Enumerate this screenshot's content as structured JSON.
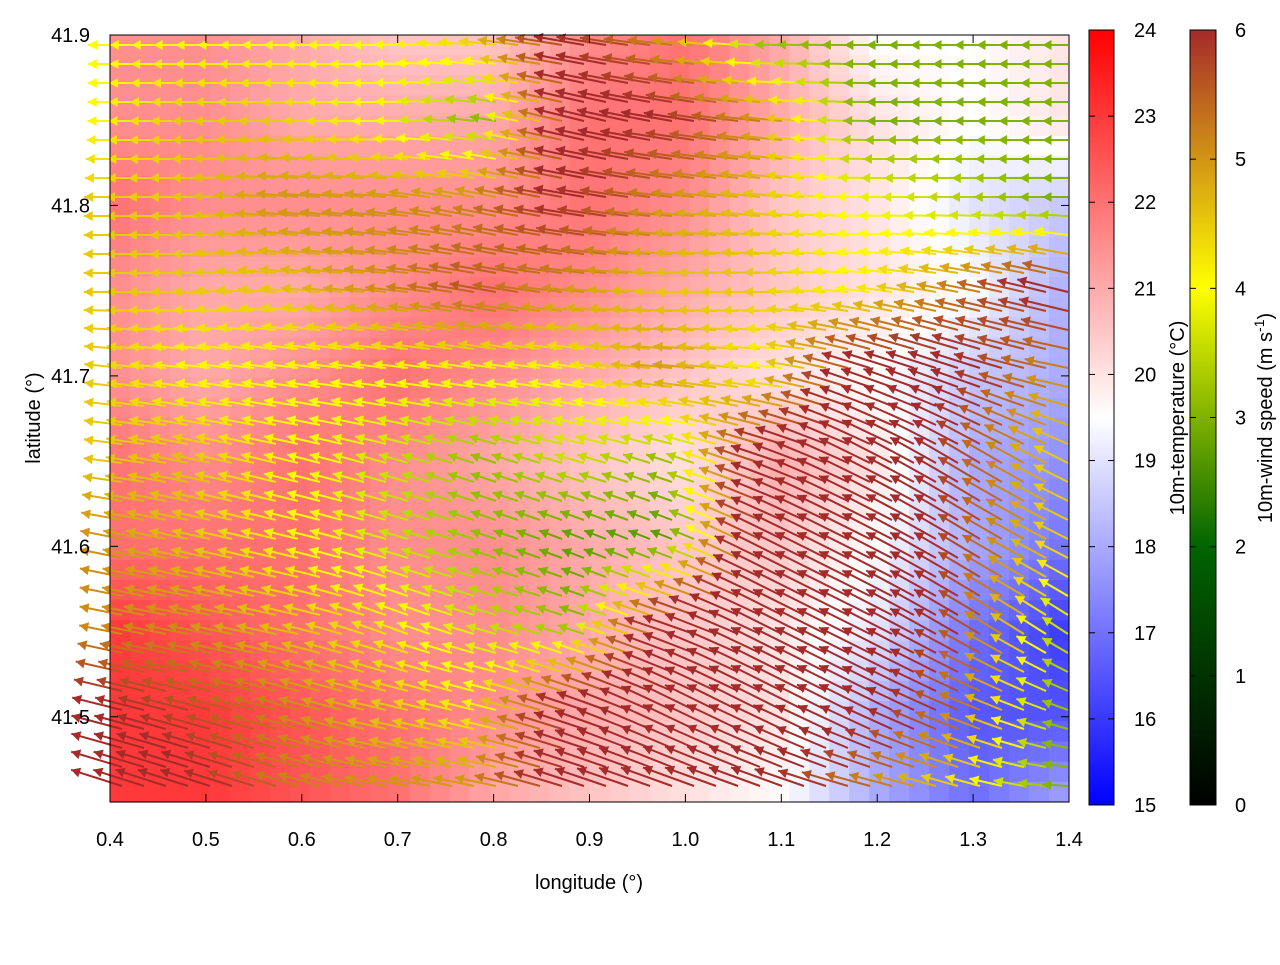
{
  "chart_data": {
    "type": "heatmap",
    "overlay": "vector-field",
    "xlabel": "longitude (°)",
    "ylabel": "latitude (°)",
    "xlim": [
      0.4,
      1.4
    ],
    "ylim": [
      41.45,
      41.9
    ],
    "xticks": [
      "0.4",
      "0.5",
      "0.6",
      "0.7",
      "0.8",
      "0.9",
      "1.0",
      "1.1",
      "1.2",
      "1.3",
      "1.4"
    ],
    "yticks": [
      "41.5",
      "41.6",
      "41.7",
      "41.8",
      "41.9"
    ],
    "grid": false,
    "temperature_colorbar": {
      "label": "10m-temperature (°C)",
      "range": [
        15,
        24
      ],
      "ticks": [
        "15",
        "16",
        "17",
        "18",
        "19",
        "20",
        "21",
        "22",
        "23",
        "24"
      ],
      "colors": [
        "#0000ff",
        "#ffffff",
        "#ff0000"
      ]
    },
    "wind_colorbar": {
      "label": "10m-wind speed (m s",
      "label_sup": "-1",
      "label_end": ")",
      "range": [
        0,
        6
      ],
      "ticks": [
        "0",
        "1",
        "2",
        "3",
        "4",
        "5",
        "6"
      ],
      "colors": [
        "#000000",
        "#006400",
        "#ffff00",
        "#a52a2a"
      ]
    },
    "grid_lon": [
      0.4,
      0.5,
      0.6,
      0.7,
      0.8,
      0.9,
      1.0,
      1.1,
      1.2,
      1.3,
      1.4
    ],
    "grid_lat": [
      41.9,
      41.85,
      41.8,
      41.75,
      41.7,
      41.65,
      41.6,
      41.55,
      41.5,
      41.45
    ],
    "temperature": [
      [
        21.5,
        21.5,
        21,
        20.5,
        20.5,
        21.5,
        22,
        21,
        19.5,
        19.5,
        20
      ],
      [
        21.5,
        21.5,
        21,
        21,
        21,
        22,
        22,
        21,
        20,
        19.5,
        20
      ],
      [
        22,
        21.5,
        21.5,
        21.5,
        21.5,
        22,
        21.5,
        20.5,
        20,
        19,
        18.5
      ],
      [
        21.5,
        21,
        21,
        21.5,
        22,
        21.5,
        21,
        20.5,
        20,
        19.5,
        18
      ],
      [
        21.5,
        21,
        21.5,
        22,
        21.5,
        21,
        20.5,
        20,
        19.5,
        18.5,
        18
      ],
      [
        22,
        21.5,
        22,
        21.5,
        21,
        20.5,
        20,
        21,
        20,
        18,
        17.5
      ],
      [
        22,
        22,
        22,
        21.5,
        21.5,
        21,
        20.5,
        20.5,
        19.5,
        18,
        17
      ],
      [
        23,
        22.5,
        22,
        21.5,
        21.5,
        21,
        20.5,
        20,
        19,
        17,
        16
      ],
      [
        23,
        23,
        22.5,
        22,
        21.5,
        21,
        20.5,
        20,
        18,
        16.5,
        16.5
      ],
      [
        23,
        23,
        22.5,
        22,
        21,
        20.5,
        20,
        19.5,
        18,
        17,
        18
      ]
    ],
    "wind_u": [
      [
        -4,
        -4,
        -4,
        -4,
        -4.5,
        -6,
        -5,
        -3,
        -3,
        -3,
        -3
      ],
      [
        -4,
        -4.5,
        -4.5,
        -4,
        -3,
        -6,
        -6,
        -5,
        -3,
        -3,
        -3
      ],
      [
        -4.5,
        -4.5,
        -5,
        -5,
        -5,
        -6,
        -5,
        -4.5,
        -4,
        -3.5,
        -3
      ],
      [
        -4.5,
        -4.5,
        -4.5,
        -5,
        -5.5,
        -5,
        -4.5,
        -4.5,
        -4,
        -5,
        -6
      ],
      [
        -4.5,
        -4,
        -4,
        -4,
        -4,
        -4,
        -5,
        -4,
        -6,
        -6,
        -5
      ],
      [
        -4.5,
        -4.5,
        -4,
        -3.5,
        -3,
        -3.5,
        -3,
        -6,
        -6,
        -5,
        -4
      ],
      [
        -5,
        -4.5,
        -4,
        -3.5,
        -3,
        -2.5,
        -2.5,
        -6,
        -6,
        -5,
        -4
      ],
      [
        -5,
        -5,
        -4.5,
        -4,
        -3.5,
        -3,
        -6,
        -6,
        -6,
        -5,
        -3
      ],
      [
        -6,
        -5.5,
        -5,
        -4.5,
        -4,
        -6,
        -6,
        -6,
        -6,
        -5,
        -3
      ],
      [
        -6,
        -6,
        -5,
        -5,
        -5,
        -6,
        -6,
        -6,
        -5,
        -4,
        -3
      ]
    ],
    "wind_v": [
      [
        0,
        0,
        0,
        0,
        0.5,
        1,
        0.5,
        0,
        0,
        0,
        0
      ],
      [
        0,
        0,
        0,
        0,
        0.5,
        1.5,
        1,
        0.5,
        0,
        0,
        0
      ],
      [
        0,
        0,
        0.5,
        0.5,
        1,
        1,
        0.5,
        0.5,
        0,
        0,
        0
      ],
      [
        0,
        0,
        0.5,
        0.5,
        1,
        0.5,
        0,
        0,
        0.5,
        1,
        1.5
      ],
      [
        0.5,
        0.5,
        0.5,
        0.5,
        0.5,
        0.5,
        0.5,
        0.5,
        2,
        2,
        1
      ],
      [
        0.5,
        1,
        1,
        1,
        1,
        1,
        1,
        2,
        3,
        3,
        2
      ],
      [
        1,
        1,
        1,
        1,
        1,
        1,
        1,
        3,
        3,
        3,
        2
      ],
      [
        1,
        1,
        1,
        1.5,
        1,
        1,
        2,
        3,
        3,
        3,
        2
      ],
      [
        1.5,
        1.5,
        1.5,
        1,
        1,
        2,
        3,
        3,
        3,
        2,
        1
      ],
      [
        2,
        2,
        1.5,
        1,
        1,
        2,
        2,
        2,
        1,
        1,
        0
      ]
    ]
  }
}
